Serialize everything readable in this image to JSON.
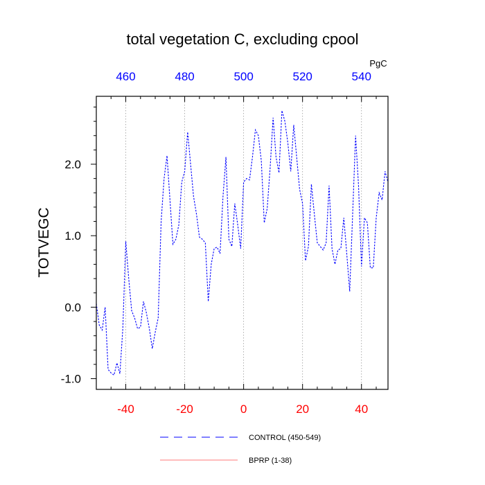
{
  "chart_data": {
    "type": "line",
    "title": "total vegetation C, excluding cpool",
    "ylabel": "TOTVEGC",
    "xlabel": "",
    "xlim": [
      -50,
      49
    ],
    "ylim": [
      -1.15,
      2.95
    ],
    "x_ticks": [
      -40,
      -20,
      0,
      20,
      40
    ],
    "x_tick_labels": [
      "-40",
      "-20",
      "0",
      "20",
      "40"
    ],
    "y_ticks": [
      -1.0,
      0.0,
      1.0,
      2.0
    ],
    "y_tick_labels": [
      "-1.0",
      "0.0",
      "1.0",
      "2.0"
    ],
    "top_axis": {
      "unit": "PgC",
      "ticks": [
        -40,
        -20,
        0,
        20,
        40
      ],
      "labels": [
        "460",
        "480",
        "500",
        "520",
        "540"
      ]
    },
    "grid": "vertical dotted lines at bottom x ticks",
    "series": [
      {
        "name": "CONTROL (450-549)",
        "color": "#0000ff",
        "style": "dashed",
        "x": [
          -50,
          -49,
          -48,
          -47,
          -46,
          -45,
          -44,
          -43,
          -42,
          -41,
          -40,
          -39,
          -38,
          -37,
          -36,
          -35,
          -34,
          -33,
          -32,
          -31,
          -30,
          -29,
          -28,
          -27,
          -26,
          -25,
          -24,
          -23,
          -22,
          -21,
          -20,
          -19,
          -18,
          -17,
          -16,
          -15,
          -14,
          -13,
          -12,
          -11,
          -10,
          -9,
          -8,
          -7,
          -6,
          -5,
          -4,
          -3,
          -2,
          -1,
          0,
          1,
          2,
          3,
          4,
          5,
          6,
          7,
          8,
          9,
          10,
          11,
          12,
          13,
          14,
          15,
          16,
          17,
          18,
          19,
          20,
          21,
          22,
          23,
          24,
          25,
          26,
          27,
          28,
          29,
          30,
          31,
          32,
          33,
          34,
          35,
          36,
          37,
          38,
          39,
          40,
          41,
          42,
          43,
          44,
          45,
          46,
          47,
          48,
          49
        ],
        "values": [
          0.05,
          -0.25,
          -0.32,
          0.0,
          -0.87,
          -0.92,
          -0.95,
          -0.78,
          -0.93,
          -0.3,
          0.92,
          0.4,
          -0.05,
          -0.15,
          -0.3,
          -0.28,
          0.08,
          -0.08,
          -0.3,
          -0.58,
          -0.35,
          -0.15,
          1.2,
          1.8,
          2.12,
          1.5,
          0.88,
          0.95,
          1.15,
          1.75,
          1.9,
          2.45,
          2.0,
          1.55,
          1.3,
          0.98,
          0.95,
          0.9,
          0.08,
          0.6,
          0.82,
          0.84,
          0.75,
          1.55,
          2.1,
          0.95,
          0.85,
          1.45,
          1.15,
          0.82,
          1.75,
          1.8,
          1.78,
          2.1,
          2.48,
          2.4,
          2.05,
          1.18,
          1.38,
          1.95,
          2.65,
          2.1,
          1.88,
          2.75,
          2.6,
          2.3,
          1.9,
          2.55,
          2.1,
          1.65,
          1.45,
          0.65,
          0.85,
          1.72,
          1.3,
          0.9,
          0.85,
          0.8,
          0.9,
          1.7,
          0.82,
          0.6,
          0.8,
          0.82,
          1.25,
          0.75,
          0.22,
          1.3,
          2.4,
          1.7,
          0.57,
          1.25,
          1.18,
          0.55,
          0.55,
          1.25,
          1.6,
          1.5,
          1.9,
          1.75
        ]
      },
      {
        "name": "BPRP (1-38)",
        "color": "#ff0000",
        "style": "solid",
        "x": [],
        "values": []
      }
    ],
    "legend": {
      "placement": "bottom",
      "entries": [
        "CONTROL (450-549)",
        "BPRP (1-38)"
      ]
    },
    "colors": {
      "bottom_axis_labels": "#ff0000",
      "top_axis_labels": "#0000ff",
      "control_line": "#0000ff",
      "bprp_line": "#ff0000"
    }
  }
}
